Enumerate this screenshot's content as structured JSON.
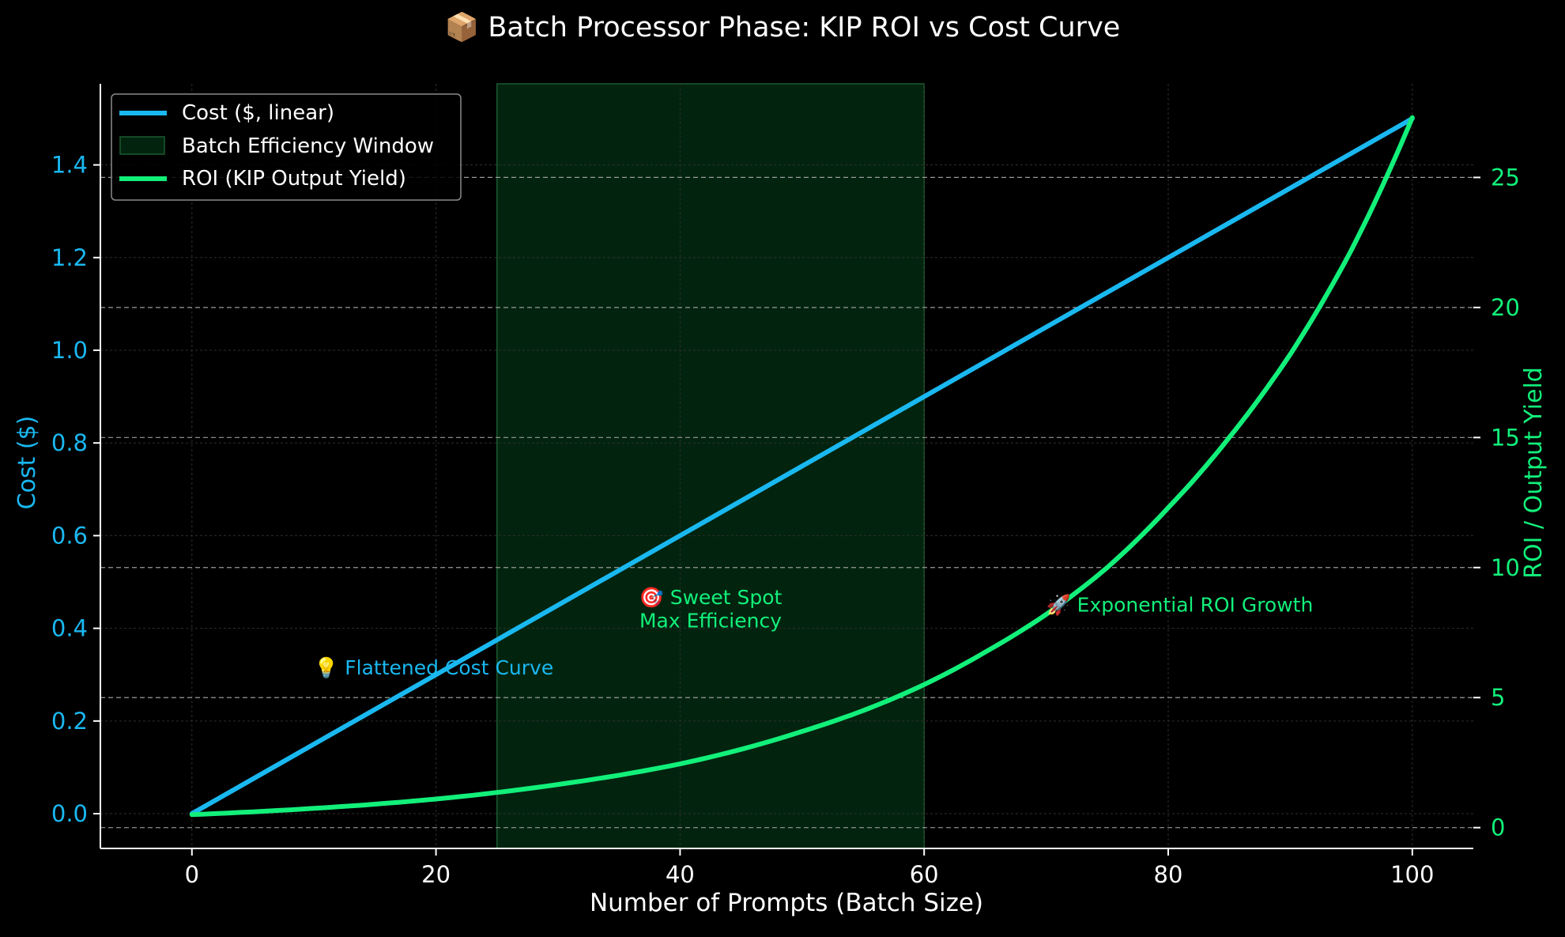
{
  "chart_data": {
    "type": "line",
    "title": "📦 Batch Processor Phase: KIP ROI vs Cost Curve",
    "xlabel": "Number of Prompts (Batch Size)",
    "ylabel_left": "Cost ($)",
    "ylabel_right": "ROI / Output Yield",
    "xlim": [
      -7.5,
      105
    ],
    "ylim_left": [
      -0.075,
      1.575
    ],
    "ylim_right": [
      -0.8,
      28.6
    ],
    "x_ticks": [
      0,
      20,
      40,
      60,
      80,
      100
    ],
    "x_tick_labels": [
      "0",
      "20",
      "40",
      "60",
      "80",
      "100"
    ],
    "y_left_ticks": [
      0.0,
      0.2,
      0.4,
      0.6,
      0.8,
      1.0,
      1.2,
      1.4
    ],
    "y_left_tick_labels": [
      "0.0",
      "0.2",
      "0.4",
      "0.6",
      "0.8",
      "1.0",
      "1.2",
      "1.4"
    ],
    "y_right_ticks": [
      0,
      5,
      10,
      15,
      20,
      25
    ],
    "y_right_tick_labels": [
      "0",
      "5",
      "10",
      "15",
      "20",
      "25"
    ],
    "grid": true,
    "legend_position": "top-left",
    "legend": {
      "cost_label": "Cost ($, linear)",
      "window_label": "Batch Efficiency Window",
      "roi_label": "ROI (KIP Output Yield)"
    },
    "colors": {
      "cost": "#1ab8f0",
      "roi": "#12f07a",
      "window_fill": "#02240f",
      "window_edge": "#1c5a30",
      "text": "#ffffff",
      "grid": "#2e2e2e"
    },
    "window": {
      "x_start": 25,
      "x_end": 60
    },
    "series": [
      {
        "name": "Cost ($, linear)",
        "axis": "left",
        "x": [
          0,
          100
        ],
        "values": [
          0.0,
          1.5
        ]
      },
      {
        "name": "ROI (KIP Output Yield)",
        "axis": "right",
        "x": [
          0,
          10,
          20,
          30,
          40,
          50,
          55,
          60,
          65,
          70,
          75,
          80,
          85,
          90,
          95,
          100
        ],
        "values": [
          0.5,
          0.74,
          1.1,
          1.66,
          2.45,
          3.7,
          4.5,
          5.5,
          6.75,
          8.2,
          10.0,
          12.3,
          15.0,
          18.2,
          22.2,
          27.3
        ]
      }
    ],
    "annotations": [
      {
        "name": "flattened-cost-note",
        "text": "💡 Flattened Cost Curve",
        "x": 10,
        "y": 0.3,
        "axis": "left",
        "color": "#1ab8f0"
      },
      {
        "name": "sweet-spot-note-line1",
        "text": "🎯 Sweet Spot",
        "x": 42.5,
        "y": 8.6,
        "axis": "right",
        "color": "#12f07a"
      },
      {
        "name": "sweet-spot-note-line2",
        "text": "Max Efficiency",
        "x": 42.5,
        "y": 7.7,
        "axis": "right",
        "color": "#12f07a"
      },
      {
        "name": "roi-growth-note",
        "text": "🚀 Exponential ROI Growth",
        "x": 70,
        "y": 8.3,
        "axis": "right",
        "color": "#12f07a"
      }
    ]
  }
}
